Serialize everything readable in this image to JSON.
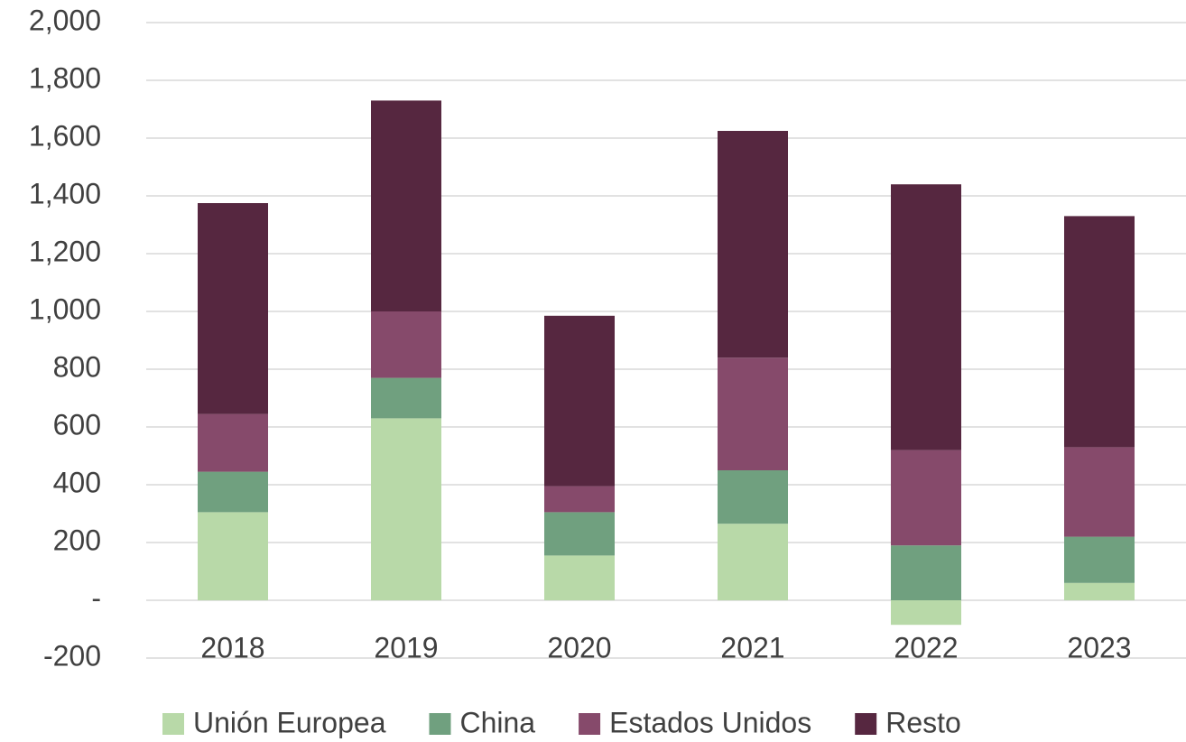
{
  "chart_data": {
    "type": "stacked_bar",
    "categories": [
      "2018",
      "2019",
      "2020",
      "2021",
      "2022",
      "2023"
    ],
    "series": [
      {
        "name": "Unión Europea",
        "color": "#b8d9a8",
        "values": [
          305,
          630,
          155,
          265,
          -85,
          60
        ]
      },
      {
        "name": "China",
        "color": "#70a07f",
        "values": [
          140,
          140,
          150,
          185,
          190,
          160
        ]
      },
      {
        "name": "Estados Unidos",
        "color": "#864a6b",
        "values": [
          200,
          230,
          90,
          390,
          330,
          310
        ]
      },
      {
        "name": "Resto",
        "color": "#562740",
        "values": [
          730,
          730,
          590,
          785,
          920,
          800
        ]
      }
    ],
    "ylim": [
      -200,
      2000
    ],
    "yticks": [
      -200,
      {
        "value": 0,
        "label": "-"
      },
      200,
      400,
      600,
      800,
      {
        "value": 1000,
        "label": "1,000"
      },
      {
        "value": 1200,
        "label": "1,200"
      },
      {
        "value": 1400,
        "label": "1,400"
      },
      {
        "value": 1600,
        "label": "1,600"
      },
      {
        "value": 1800,
        "label": "1,800"
      },
      {
        "value": 2000,
        "label": "2,000"
      }
    ],
    "grid": true,
    "legend": "bottom"
  }
}
